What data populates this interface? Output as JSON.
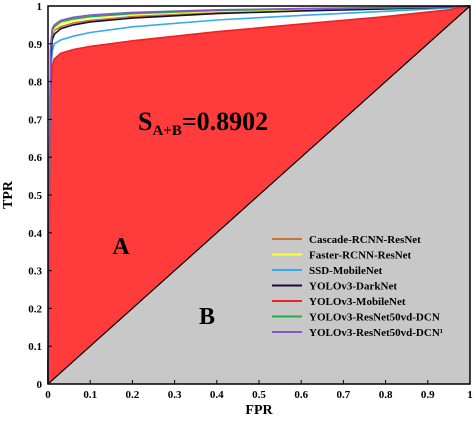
{
  "chart_data": {
    "type": "line",
    "title": "",
    "xlabel": "FPR",
    "ylabel": "TPR",
    "xlim": [
      0,
      1
    ],
    "ylim": [
      0,
      1
    ],
    "grid": false,
    "legend_position": "bottom-right",
    "x_ticks": [
      "0",
      "0.1",
      "0.2",
      "0.3",
      "0.4",
      "0.5",
      "0.6",
      "0.7",
      "0.8",
      "0.9",
      "1"
    ],
    "y_ticks": [
      "0",
      "0.1",
      "0.2",
      "0.3",
      "0.4",
      "0.5",
      "0.6",
      "0.7",
      "0.8",
      "0.9",
      "1"
    ],
    "annotations": {
      "area_main": "S",
      "area_sub": "A+B",
      "area_value": "=0.8902",
      "region_a": "A",
      "region_b": "B"
    },
    "colors": {
      "region_a_fill": "#ff3b3b",
      "region_b_fill": "#c8c8c8",
      "diagonal": "#000000"
    },
    "series": [
      {
        "name": "Cascade-RCNN-ResNet",
        "color": "#c87533",
        "x": [
          0,
          0.003,
          0.006,
          0.01,
          0.015,
          0.03,
          0.06,
          0.1,
          0.2,
          0.4,
          0.6,
          0.8,
          0.95,
          1
        ],
        "y": [
          0,
          0.45,
          0.85,
          0.92,
          0.935,
          0.945,
          0.955,
          0.962,
          0.972,
          0.982,
          0.988,
          0.993,
          0.997,
          1
        ]
      },
      {
        "name": "Faster-RCNN-ResNet",
        "color": "#ffff33",
        "x": [
          0,
          0.003,
          0.006,
          0.01,
          0.015,
          0.03,
          0.06,
          0.1,
          0.2,
          0.4,
          0.6,
          0.8,
          0.95,
          1
        ],
        "y": [
          0,
          0.5,
          0.88,
          0.93,
          0.94,
          0.952,
          0.962,
          0.97,
          0.978,
          0.986,
          0.99,
          0.994,
          0.998,
          1
        ]
      },
      {
        "name": "SSD-MobileNet",
        "color": "#33aaee",
        "x": [
          0,
          0.003,
          0.006,
          0.01,
          0.015,
          0.03,
          0.06,
          0.1,
          0.2,
          0.4,
          0.6,
          0.8,
          0.95,
          1
        ],
        "y": [
          0,
          0.4,
          0.8,
          0.88,
          0.9,
          0.91,
          0.92,
          0.93,
          0.945,
          0.963,
          0.975,
          0.986,
          0.995,
          1
        ]
      },
      {
        "name": "YOLOv3-DarkNet",
        "color": "#111133",
        "x": [
          0,
          0.003,
          0.006,
          0.01,
          0.015,
          0.03,
          0.06,
          0.1,
          0.2,
          0.4,
          0.6,
          0.8,
          0.95,
          1
        ],
        "y": [
          0,
          0.45,
          0.85,
          0.91,
          0.925,
          0.94,
          0.95,
          0.958,
          0.968,
          0.98,
          0.987,
          0.992,
          0.997,
          1
        ]
      },
      {
        "name": "YOLOv3-MobileNet",
        "color": "#ee2222",
        "x": [
          0,
          0.003,
          0.006,
          0.01,
          0.015,
          0.03,
          0.06,
          0.1,
          0.2,
          0.4,
          0.6,
          0.8,
          0.95,
          1
        ],
        "y": [
          0,
          0.35,
          0.75,
          0.84,
          0.86,
          0.875,
          0.885,
          0.893,
          0.908,
          0.932,
          0.952,
          0.972,
          0.99,
          1
        ]
      },
      {
        "name": "YOLOv3-ResNet50vd-DCN",
        "color": "#22aa44",
        "x": [
          0,
          0.003,
          0.006,
          0.01,
          0.015,
          0.03,
          0.06,
          0.1,
          0.2,
          0.4,
          0.6,
          0.8,
          0.95,
          1
        ],
        "y": [
          0,
          0.5,
          0.88,
          0.935,
          0.945,
          0.958,
          0.966,
          0.972,
          0.98,
          0.988,
          0.992,
          0.995,
          0.998,
          1
        ]
      },
      {
        "name": "YOLOv3-ResNet50vd-DCN¹",
        "color": "#8855cc",
        "x": [
          0,
          0.003,
          0.006,
          0.01,
          0.015,
          0.03,
          0.06,
          0.1,
          0.2,
          0.4,
          0.6,
          0.8,
          0.95,
          1
        ],
        "y": [
          0,
          0.52,
          0.89,
          0.94,
          0.95,
          0.962,
          0.97,
          0.976,
          0.983,
          0.99,
          0.993,
          0.996,
          0.999,
          1
        ]
      }
    ]
  }
}
